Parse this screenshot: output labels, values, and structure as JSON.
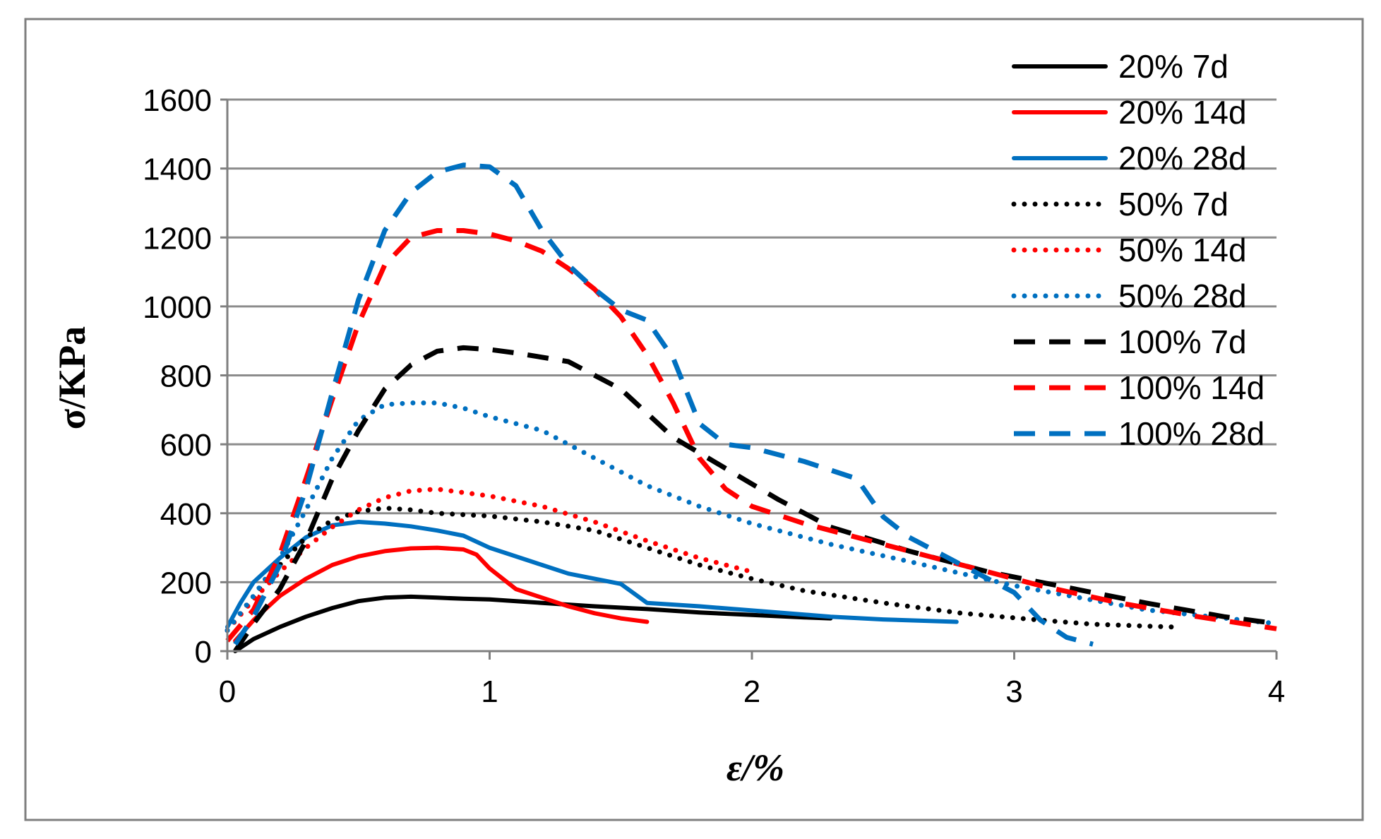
{
  "chart_data": {
    "type": "line",
    "title": "",
    "xlabel": "ε/%",
    "ylabel": "σ/KPa",
    "xlim": [
      0,
      4
    ],
    "ylim": [
      0,
      1600
    ],
    "xticks": [
      0,
      1,
      2,
      3,
      4
    ],
    "yticks": [
      0,
      200,
      400,
      600,
      800,
      1000,
      1200,
      1400,
      1600
    ],
    "xtick_labels": [
      "0",
      "1",
      "2",
      "3",
      "4"
    ],
    "ytick_labels": [
      "0",
      "200",
      "400",
      "600",
      "800",
      "1000",
      "1200",
      "1400",
      "1600"
    ],
    "grid": "horizontal",
    "legend_position": "right",
    "series": [
      {
        "name": "20% 7d",
        "color": "#000000",
        "style": "solid",
        "x": [
          0.03,
          0.1,
          0.2,
          0.3,
          0.4,
          0.5,
          0.6,
          0.7,
          0.8,
          0.9,
          1.0,
          1.2,
          1.4,
          1.6,
          1.8,
          2.0,
          2.2,
          2.3
        ],
        "y": [
          0,
          35,
          70,
          100,
          125,
          145,
          155,
          158,
          155,
          152,
          150,
          140,
          130,
          122,
          112,
          105,
          98,
          95
        ]
      },
      {
        "name": "20% 14d",
        "color": "#ff0000",
        "style": "solid",
        "x": [
          0.03,
          0.1,
          0.2,
          0.3,
          0.4,
          0.5,
          0.6,
          0.7,
          0.8,
          0.9,
          0.95,
          1.0,
          1.1,
          1.2,
          1.3,
          1.4,
          1.5,
          1.6
        ],
        "y": [
          30,
          90,
          160,
          210,
          250,
          275,
          290,
          298,
          300,
          295,
          280,
          240,
          180,
          155,
          130,
          110,
          95,
          85
        ]
      },
      {
        "name": "20% 28d",
        "color": "#0070c0",
        "style": "solid",
        "x": [
          0.0,
          0.05,
          0.1,
          0.2,
          0.3,
          0.4,
          0.5,
          0.6,
          0.7,
          0.8,
          0.9,
          1.0,
          1.2,
          1.3,
          1.5,
          1.6,
          1.8,
          2.0,
          2.3,
          2.5,
          2.78
        ],
        "y": [
          70,
          140,
          200,
          270,
          330,
          365,
          375,
          370,
          362,
          350,
          335,
          300,
          250,
          225,
          195,
          140,
          130,
          118,
          100,
          92,
          85
        ]
      },
      {
        "name": "50% 7d",
        "color": "#000000",
        "style": "dotted",
        "x": [
          0.0,
          0.1,
          0.2,
          0.3,
          0.4,
          0.5,
          0.6,
          0.7,
          0.8,
          1.0,
          1.2,
          1.4,
          1.6,
          1.8,
          2.0,
          2.2,
          2.5,
          2.8,
          3.1,
          3.3,
          3.6
        ],
        "y": [
          60,
          160,
          250,
          330,
          380,
          405,
          415,
          410,
          400,
          392,
          375,
          350,
          300,
          250,
          210,
          175,
          140,
          110,
          90,
          78,
          70
        ]
      },
      {
        "name": "50% 14d",
        "color": "#ff0000",
        "style": "dotted",
        "x": [
          0.0,
          0.1,
          0.2,
          0.3,
          0.4,
          0.5,
          0.6,
          0.7,
          0.8,
          1.0,
          1.2,
          1.4,
          1.6,
          1.8,
          2.0
        ],
        "y": [
          60,
          150,
          230,
          300,
          360,
          410,
          445,
          465,
          470,
          450,
          420,
          375,
          320,
          270,
          230
        ]
      },
      {
        "name": "50% 28d",
        "color": "#0070c0",
        "style": "dotted",
        "x": [
          0.0,
          0.1,
          0.2,
          0.3,
          0.4,
          0.5,
          0.6,
          0.7,
          0.8,
          0.9,
          1.0,
          1.2,
          1.4,
          1.6,
          1.8,
          2.0,
          2.3,
          2.6,
          3.0,
          3.5,
          4.0
        ],
        "y": [
          60,
          160,
          270,
          410,
          560,
          670,
          715,
          720,
          720,
          705,
          680,
          640,
          560,
          480,
          420,
          370,
          310,
          260,
          190,
          120,
          80
        ]
      },
      {
        "name": "100% 7d",
        "color": "#000000",
        "style": "dashed",
        "x": [
          0.03,
          0.1,
          0.2,
          0.3,
          0.4,
          0.5,
          0.6,
          0.7,
          0.8,
          0.9,
          1.0,
          1.1,
          1.3,
          1.5,
          1.7,
          1.9,
          2.1,
          2.3,
          2.6,
          2.9,
          3.2,
          3.5,
          3.8,
          4.0
        ],
        "y": [
          0,
          80,
          180,
          320,
          500,
          640,
          760,
          830,
          870,
          880,
          875,
          865,
          840,
          760,
          620,
          530,
          440,
          360,
          290,
          230,
          185,
          140,
          100,
          80
        ]
      },
      {
        "name": "100% 14d",
        "color": "#ff0000",
        "style": "dashed",
        "x": [
          0.0,
          0.1,
          0.2,
          0.3,
          0.4,
          0.5,
          0.6,
          0.7,
          0.8,
          0.9,
          1.0,
          1.1,
          1.2,
          1.3,
          1.4,
          1.5,
          1.6,
          1.7,
          1.8,
          1.9,
          2.0,
          2.2,
          2.5,
          2.8,
          3.1,
          3.4,
          3.7,
          4.0
        ],
        "y": [
          30,
          120,
          280,
          500,
          730,
          950,
          1120,
          1200,
          1220,
          1220,
          1210,
          1190,
          1160,
          1110,
          1050,
          970,
          860,
          720,
          560,
          470,
          420,
          370,
          310,
          250,
          190,
          140,
          100,
          65
        ]
      },
      {
        "name": "100% 28d",
        "color": "#0070c0",
        "style": "dashed",
        "x": [
          0.03,
          0.1,
          0.2,
          0.3,
          0.4,
          0.5,
          0.6,
          0.7,
          0.8,
          0.9,
          1.0,
          1.1,
          1.2,
          1.3,
          1.4,
          1.5,
          1.6,
          1.7,
          1.8,
          1.9,
          2.0,
          2.2,
          2.4,
          2.5,
          2.6,
          2.8,
          3.0,
          3.1,
          3.2,
          3.3
        ],
        "y": [
          20,
          100,
          250,
          470,
          750,
          1020,
          1220,
          1330,
          1390,
          1410,
          1405,
          1350,
          1220,
          1120,
          1050,
          990,
          960,
          850,
          660,
          600,
          590,
          550,
          500,
          390,
          330,
          250,
          170,
          90,
          40,
          20
        ]
      }
    ]
  }
}
